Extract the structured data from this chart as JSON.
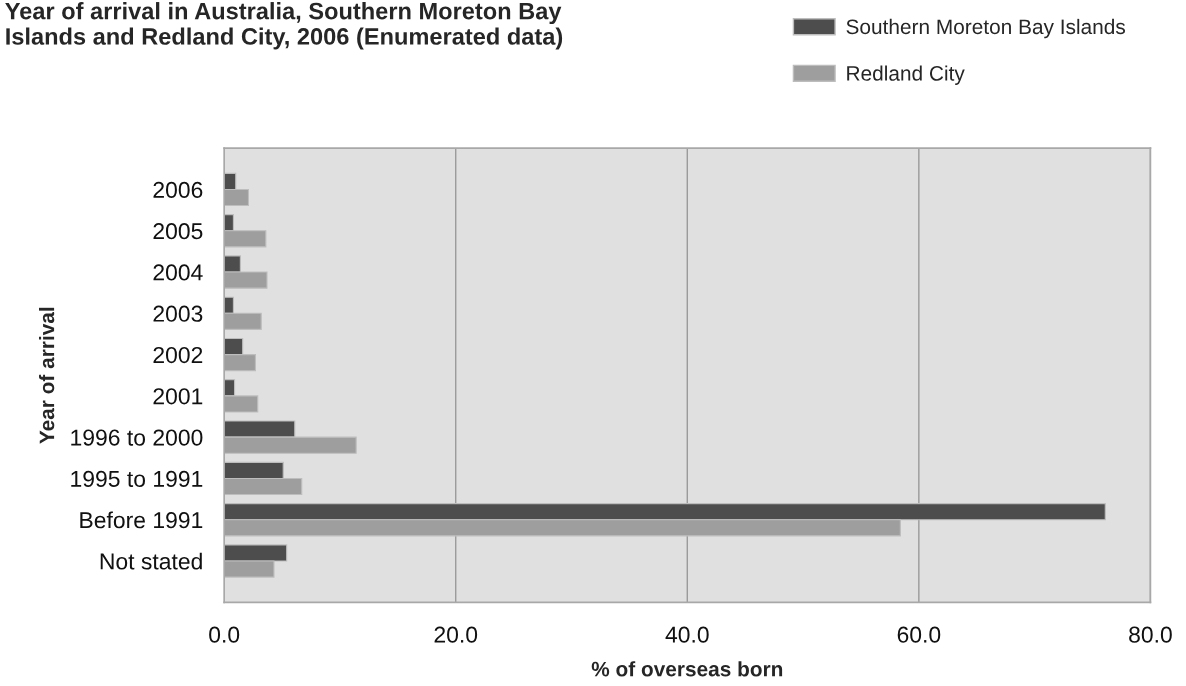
{
  "chart_data": {
    "type": "bar",
    "orientation": "horizontal",
    "title": "Year of arrival in Australia, Southern Moreton Bay\nIslands and Redland City, 2006 (Enumerated data)",
    "xlabel": "% of overseas born",
    "ylabel": "Year of arrival",
    "categories": [
      "2006",
      "2005",
      "2004",
      "2003",
      "2002",
      "2001",
      "1996 to 2000",
      "1995 to 1991",
      "Before 1991",
      "Not stated"
    ],
    "series": [
      {
        "name": "Southern Moreton Bay Islands",
        "color": "#4d4d4d",
        "values": [
          1.0,
          0.8,
          1.4,
          0.8,
          1.6,
          0.9,
          6.1,
          5.1,
          76.1,
          5.4
        ]
      },
      {
        "name": "Redland City",
        "color": "#9e9e9e",
        "values": [
          2.1,
          3.6,
          3.7,
          3.2,
          2.7,
          2.9,
          11.4,
          6.7,
          58.4,
          4.3
        ]
      }
    ],
    "xlim": [
      0,
      80
    ],
    "xticks": [
      {
        "value": 0,
        "label": "0.0"
      },
      {
        "value": 20,
        "label": "20.0"
      },
      {
        "value": 40,
        "label": "40.0"
      },
      {
        "value": 60,
        "label": "60.0"
      },
      {
        "value": 80,
        "label": "80.0"
      }
    ],
    "grid": "x",
    "legend": "top right"
  }
}
